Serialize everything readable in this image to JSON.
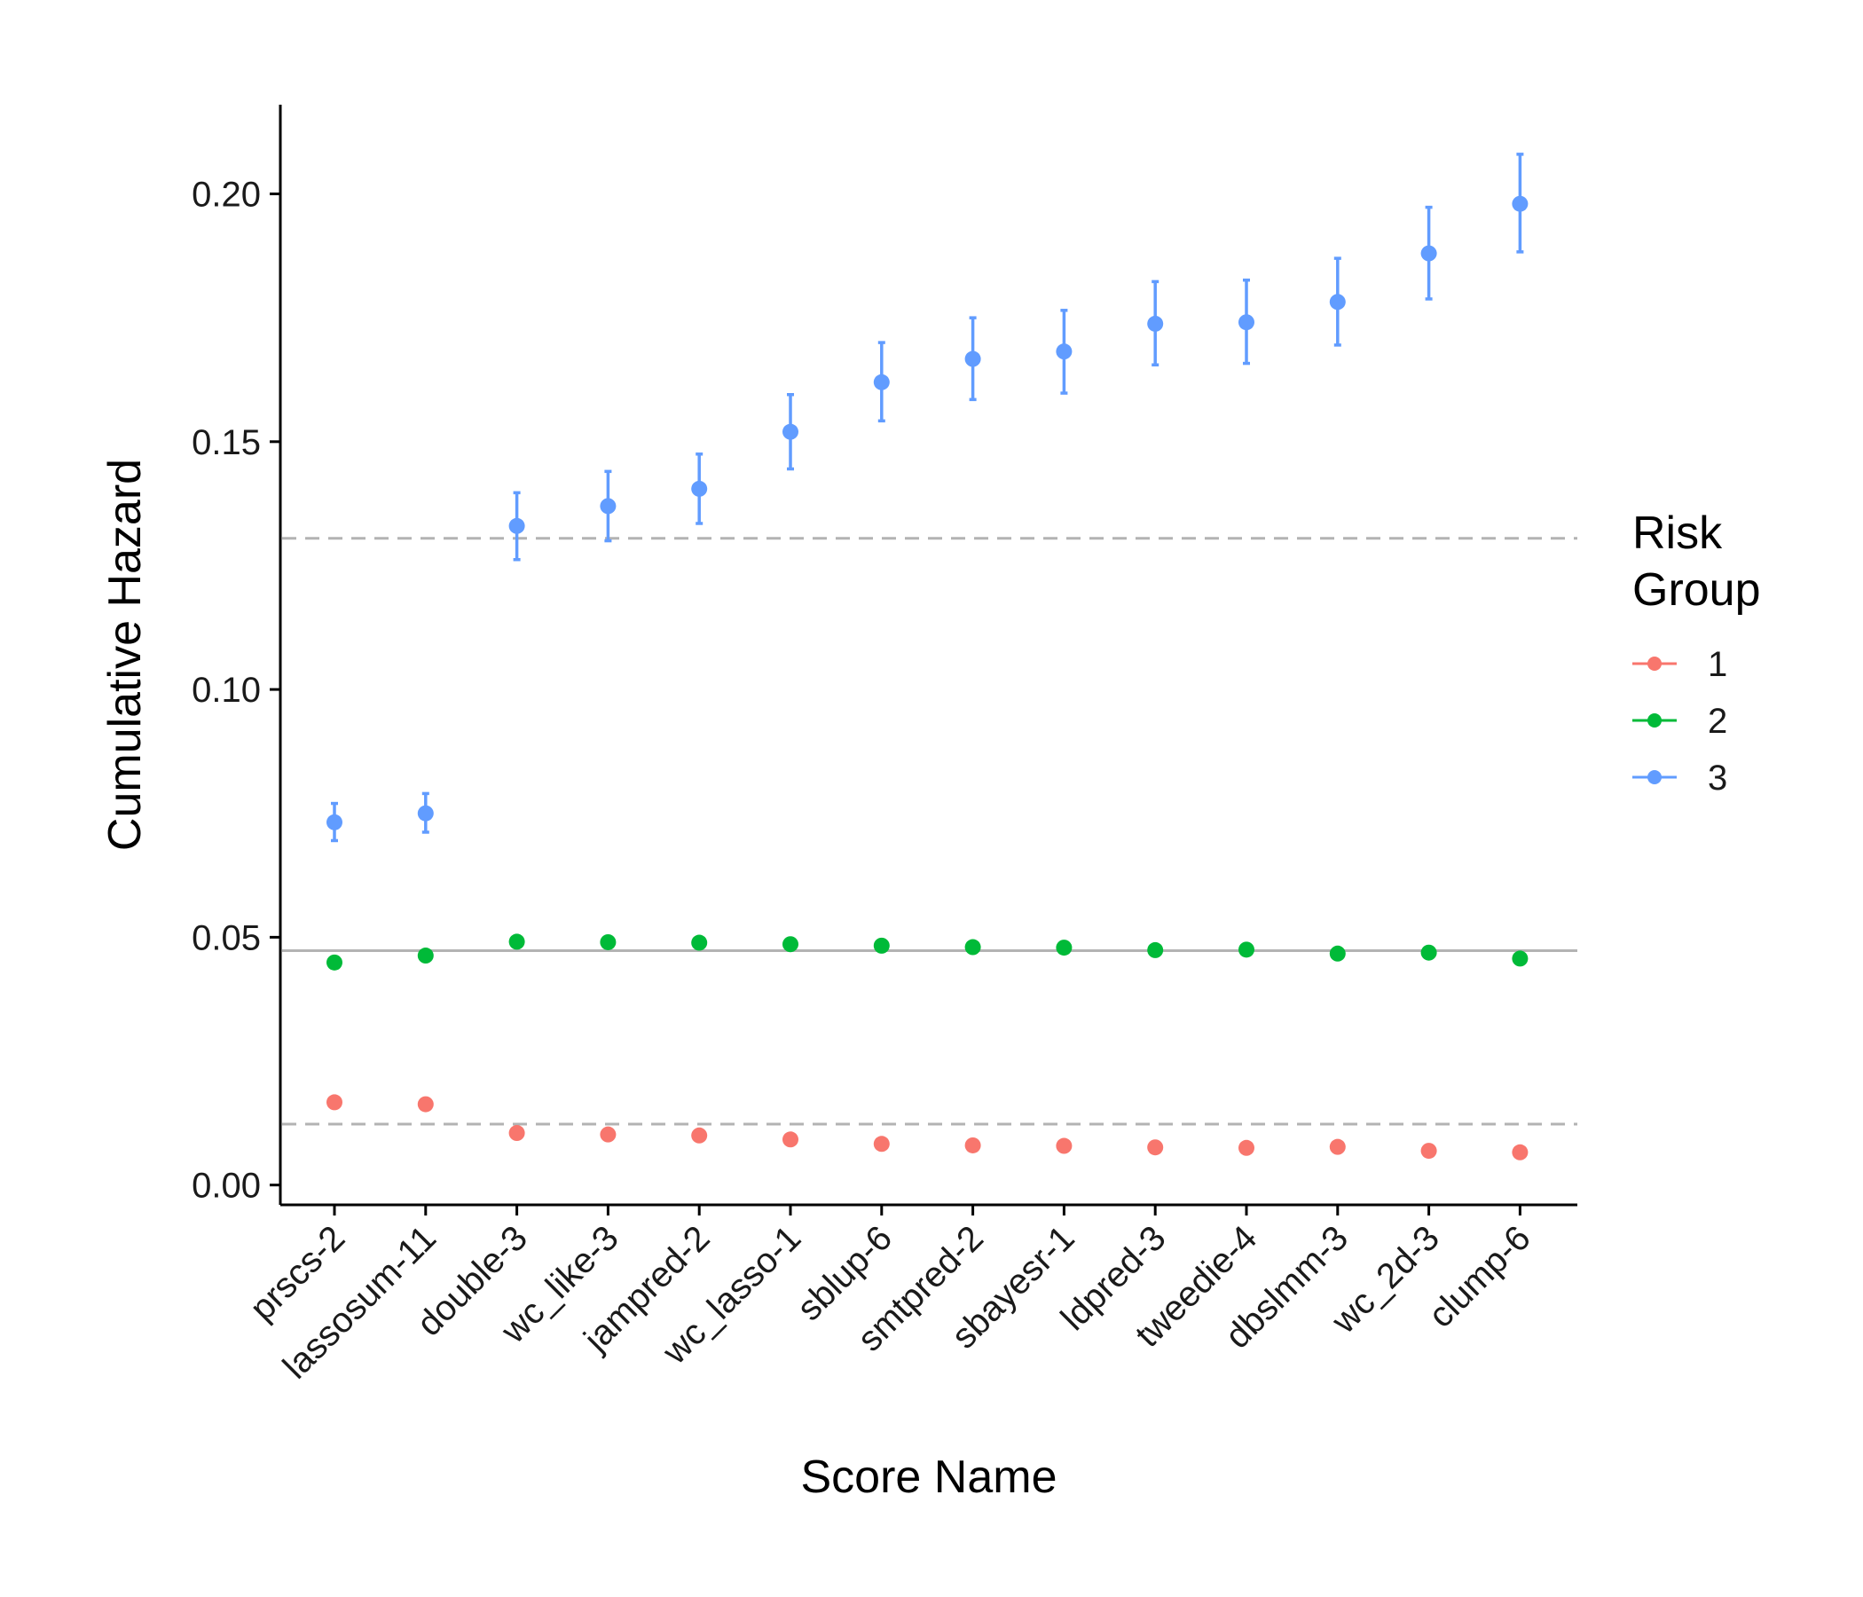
{
  "chart_data": {
    "type": "scatter",
    "xlabel": "Score Name",
    "ylabel": "Cumulative Hazard",
    "categories": [
      "prscs-2",
      "lassosum-11",
      "double-3",
      "wc_like-3",
      "jampred-2",
      "wc_lasso-1",
      "sblup-6",
      "smtpred-2",
      "sbayesr-1",
      "ldpred-3",
      "tweedie-4",
      "dbslmm-3",
      "wc_2d-3",
      "clump-6"
    ],
    "y_ticks": [
      "0.00",
      "0.05",
      "0.10",
      "0.15",
      "0.20"
    ],
    "ylim": [
      -0.004,
      0.218
    ],
    "grid": false,
    "legend": {
      "title_lines": [
        "Risk",
        "Group"
      ],
      "position": "right"
    },
    "series": [
      {
        "name": "1",
        "color": "#F8766D",
        "values": [
          0.0167,
          0.0163,
          0.0105,
          0.0102,
          0.01,
          0.0092,
          0.0083,
          0.008,
          0.0079,
          0.0076,
          0.0075,
          0.0077,
          0.0069,
          0.0066
        ]
      },
      {
        "name": "2",
        "color": "#00BA38",
        "values": [
          0.0449,
          0.0463,
          0.0491,
          0.049,
          0.0489,
          0.0486,
          0.0483,
          0.048,
          0.0479,
          0.0474,
          0.0475,
          0.0467,
          0.0469,
          0.0457
        ]
      },
      {
        "name": "3",
        "color": "#619CFF",
        "values": [
          0.0732,
          0.075,
          0.133,
          0.137,
          0.1405,
          0.152,
          0.162,
          0.1667,
          0.1682,
          0.1738,
          0.1741,
          0.1782,
          0.188,
          0.198
        ],
        "error_low": [
          0.0695,
          0.0712,
          0.1262,
          0.13,
          0.1335,
          0.1445,
          0.1542,
          0.1585,
          0.1598,
          0.1655,
          0.1658,
          0.1695,
          0.1788,
          0.1883
        ],
        "error_high": [
          0.077,
          0.079,
          0.1397,
          0.144,
          0.1475,
          0.1595,
          0.17,
          0.175,
          0.1765,
          0.1823,
          0.1826,
          0.187,
          0.1973,
          0.208
        ]
      }
    ],
    "reference_lines": [
      {
        "y": 0.1305,
        "style": "dashed",
        "color": "#b3b3b3"
      },
      {
        "y": 0.0473,
        "style": "solid",
        "color": "#b3b3b3"
      },
      {
        "y": 0.0123,
        "style": "dashed",
        "color": "#b3b3b3"
      }
    ]
  }
}
